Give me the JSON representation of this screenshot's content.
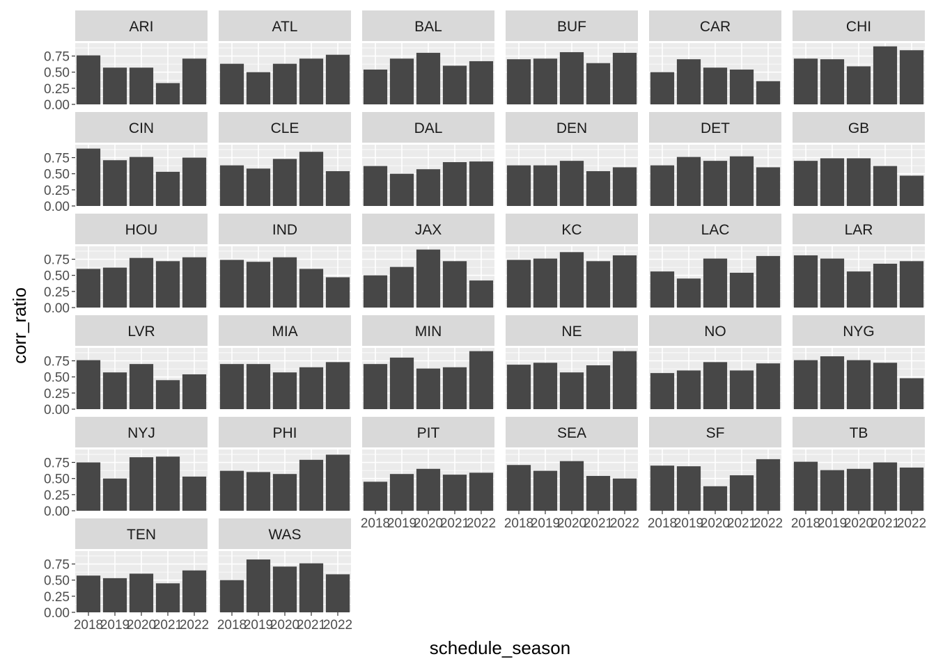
{
  "chart_data": {
    "type": "bar",
    "facet_by": "team",
    "xlabel": "schedule_season",
    "ylabel": "corr_ratio",
    "x": [
      "2018",
      "2019",
      "2020",
      "2021",
      "2022"
    ],
    "ylim": [
      0,
      0.95
    ],
    "y_ticks": [
      "0.00",
      "0.25",
      "0.50",
      "0.75"
    ],
    "y_tick_values": [
      0,
      0.25,
      0.5,
      0.75
    ],
    "grid": true,
    "colors": {
      "bar": "#474747",
      "panel": "#ebebeb",
      "strip": "#d9d9d9",
      "grid": "#ffffff",
      "text": "#4d4d4d"
    },
    "panels": [
      {
        "team": "ARI",
        "values": [
          0.76,
          0.57,
          0.57,
          0.33,
          0.71
        ]
      },
      {
        "team": "ATL",
        "values": [
          0.63,
          0.5,
          0.63,
          0.71,
          0.77
        ]
      },
      {
        "team": "BAL",
        "values": [
          0.54,
          0.71,
          0.8,
          0.6,
          0.67
        ]
      },
      {
        "team": "BUF",
        "values": [
          0.7,
          0.71,
          0.81,
          0.64,
          0.8
        ]
      },
      {
        "team": "CAR",
        "values": [
          0.5,
          0.7,
          0.57,
          0.54,
          0.36
        ]
      },
      {
        "team": "CHI",
        "values": [
          0.71,
          0.7,
          0.59,
          0.9,
          0.84
        ]
      },
      {
        "team": "CIN",
        "values": [
          0.89,
          0.71,
          0.76,
          0.53,
          0.75
        ]
      },
      {
        "team": "CLE",
        "values": [
          0.63,
          0.58,
          0.73,
          0.84,
          0.54
        ]
      },
      {
        "team": "DAL",
        "values": [
          0.62,
          0.5,
          0.57,
          0.68,
          0.69
        ]
      },
      {
        "team": "DEN",
        "values": [
          0.63,
          0.63,
          0.7,
          0.54,
          0.6
        ]
      },
      {
        "team": "DET",
        "values": [
          0.63,
          0.76,
          0.7,
          0.77,
          0.6
        ]
      },
      {
        "team": "GB",
        "values": [
          0.7,
          0.74,
          0.74,
          0.62,
          0.47
        ]
      },
      {
        "team": "HOU",
        "values": [
          0.6,
          0.62,
          0.77,
          0.72,
          0.78
        ]
      },
      {
        "team": "IND",
        "values": [
          0.74,
          0.71,
          0.78,
          0.6,
          0.47
        ]
      },
      {
        "team": "JAX",
        "values": [
          0.5,
          0.63,
          0.9,
          0.72,
          0.42
        ]
      },
      {
        "team": "KC",
        "values": [
          0.74,
          0.76,
          0.86,
          0.72,
          0.81
        ]
      },
      {
        "team": "LAC",
        "values": [
          0.56,
          0.45,
          0.76,
          0.54,
          0.8
        ]
      },
      {
        "team": "LAR",
        "values": [
          0.81,
          0.76,
          0.56,
          0.68,
          0.72
        ]
      },
      {
        "team": "LVR",
        "values": [
          0.76,
          0.57,
          0.7,
          0.45,
          0.54
        ]
      },
      {
        "team": "MIA",
        "values": [
          0.7,
          0.7,
          0.57,
          0.65,
          0.73
        ]
      },
      {
        "team": "MIN",
        "values": [
          0.7,
          0.8,
          0.63,
          0.65,
          0.9
        ]
      },
      {
        "team": "NE",
        "values": [
          0.69,
          0.72,
          0.57,
          0.68,
          0.9
        ]
      },
      {
        "team": "NO",
        "values": [
          0.56,
          0.6,
          0.73,
          0.6,
          0.71
        ]
      },
      {
        "team": "NYG",
        "values": [
          0.76,
          0.82,
          0.76,
          0.72,
          0.48
        ]
      },
      {
        "team": "NYJ",
        "values": [
          0.75,
          0.5,
          0.83,
          0.84,
          0.53
        ]
      },
      {
        "team": "PHI",
        "values": [
          0.62,
          0.6,
          0.57,
          0.79,
          0.87
        ]
      },
      {
        "team": "PIT",
        "values": [
          0.45,
          0.57,
          0.65,
          0.56,
          0.59
        ]
      },
      {
        "team": "SEA",
        "values": [
          0.71,
          0.62,
          0.77,
          0.54,
          0.5
        ]
      },
      {
        "team": "SF",
        "values": [
          0.7,
          0.69,
          0.38,
          0.55,
          0.8
        ]
      },
      {
        "team": "TB",
        "values": [
          0.76,
          0.63,
          0.65,
          0.75,
          0.67
        ]
      },
      {
        "team": "TEN",
        "values": [
          0.57,
          0.53,
          0.6,
          0.45,
          0.65
        ]
      },
      {
        "team": "WAS",
        "values": [
          0.5,
          0.82,
          0.71,
          0.76,
          0.59
        ]
      }
    ]
  }
}
